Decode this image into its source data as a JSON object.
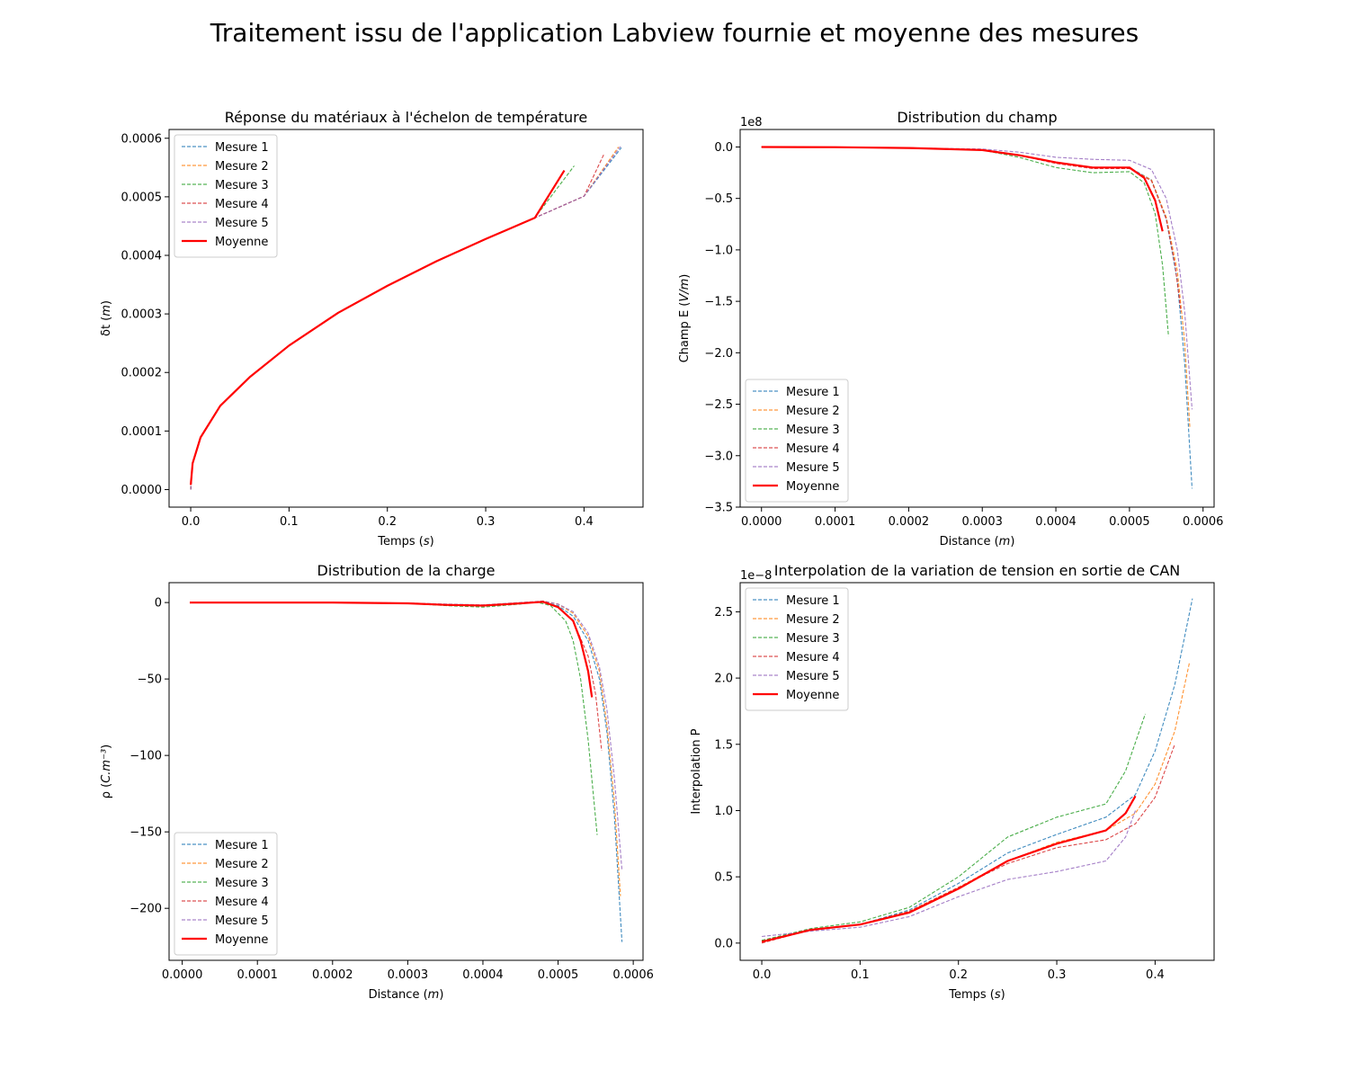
{
  "figure": {
    "title": "Traitement issu de l'application Labview fournie et moyenne des mesures"
  },
  "colors": {
    "Mesure 1": "#1f77b4",
    "Mesure 2": "#ff7f0e",
    "Mesure 3": "#2ca02c",
    "Mesure 4": "#d62728",
    "Mesure 5": "#9467bd",
    "Moyenne": "#ff0000"
  },
  "chart_data": [
    {
      "id": "c1",
      "type": "line",
      "title": "Réponse du matériaux à l'échelon de température",
      "xlabel": "Temps (s)",
      "ylabel": "δt (m)",
      "xlim": [
        -0.022,
        0.46
      ],
      "ylim": [
        -3e-05,
        0.000615
      ],
      "xticks": [
        0.0,
        0.1,
        0.2,
        0.3,
        0.4
      ],
      "xtick_labels": [
        "0.0",
        "0.1",
        "0.2",
        "0.3",
        "0.4"
      ],
      "yticks": [
        0.0,
        0.0001,
        0.0002,
        0.0003,
        0.0004,
        0.0005,
        0.0006
      ],
      "ytick_labels": [
        "0.0000",
        "0.0001",
        "0.0002",
        "0.0003",
        "0.0004",
        "0.0005",
        "0.0006"
      ],
      "exponent": "",
      "legend": "upper-left",
      "series": [
        {
          "name": "Mesure 1",
          "style": "dashed",
          "x": [
            0.0,
            0.002,
            0.01,
            0.03,
            0.06,
            0.1,
            0.15,
            0.2,
            0.25,
            0.3,
            0.35,
            0.4,
            0.438
          ],
          "y": [
            0.0,
            4.5e-05,
            8.9e-05,
            0.000143,
            0.000192,
            0.000246,
            0.000302,
            0.000348,
            0.00039,
            0.000428,
            0.000464,
            0.000501,
            0.000584
          ]
        },
        {
          "name": "Mesure 2",
          "style": "dashed",
          "x": [
            0.0,
            0.002,
            0.01,
            0.03,
            0.06,
            0.1,
            0.15,
            0.2,
            0.25,
            0.3,
            0.35,
            0.4,
            0.435
          ],
          "y": [
            0.0,
            4.5e-05,
            8.9e-05,
            0.000143,
            0.000192,
            0.000246,
            0.000302,
            0.000348,
            0.00039,
            0.000428,
            0.000464,
            0.000501,
            0.000585
          ]
        },
        {
          "name": "Mesure 3",
          "style": "dashed",
          "x": [
            0.0,
            0.002,
            0.01,
            0.03,
            0.06,
            0.1,
            0.15,
            0.2,
            0.25,
            0.3,
            0.35,
            0.39
          ],
          "y": [
            0.0,
            4.5e-05,
            8.9e-05,
            0.000143,
            0.000192,
            0.000246,
            0.000302,
            0.000348,
            0.00039,
            0.000428,
            0.000464,
            0.000553
          ]
        },
        {
          "name": "Mesure 4",
          "style": "dashed",
          "x": [
            0.0,
            0.002,
            0.01,
            0.03,
            0.06,
            0.1,
            0.15,
            0.2,
            0.25,
            0.3,
            0.35,
            0.4,
            0.42
          ],
          "y": [
            0.0,
            4.5e-05,
            8.9e-05,
            0.000143,
            0.000192,
            0.000246,
            0.000302,
            0.000348,
            0.00039,
            0.000428,
            0.000464,
            0.000501,
            0.000572
          ]
        },
        {
          "name": "Mesure 5",
          "style": "dashed",
          "x": [
            0.0,
            0.002,
            0.01,
            0.03,
            0.06,
            0.1,
            0.15,
            0.2,
            0.25,
            0.3,
            0.35,
            0.4,
            0.437
          ],
          "y": [
            0.0,
            4.5e-05,
            8.9e-05,
            0.000143,
            0.000192,
            0.000246,
            0.000302,
            0.000348,
            0.00039,
            0.000428,
            0.000464,
            0.000501,
            0.000586
          ]
        },
        {
          "name": "Moyenne",
          "style": "solid",
          "x": [
            0.0,
            0.002,
            0.01,
            0.03,
            0.06,
            0.1,
            0.15,
            0.2,
            0.25,
            0.3,
            0.35,
            0.38
          ],
          "y": [
            8e-06,
            4.5e-05,
            8.9e-05,
            0.000143,
            0.000192,
            0.000246,
            0.000302,
            0.000348,
            0.00039,
            0.000428,
            0.000464,
            0.000545
          ]
        }
      ]
    },
    {
      "id": "c2",
      "type": "line",
      "title": "Distribution du champ",
      "xlabel": "Distance (m)",
      "ylabel": "Champ E (V/m)",
      "xlim": [
        -2.9e-05,
        0.000615
      ],
      "ylim": [
        -3.5,
        0.17
      ],
      "xticks": [
        0.0,
        0.0001,
        0.0002,
        0.0003,
        0.0004,
        0.0005,
        0.0006
      ],
      "xtick_labels": [
        "0.0000",
        "0.0001",
        "0.0002",
        "0.0003",
        "0.0004",
        "0.0005",
        "0.0006"
      ],
      "yticks": [
        0.0,
        -0.5,
        -1.0,
        -1.5,
        -2.0,
        -2.5,
        -3.0,
        -3.5
      ],
      "ytick_labels": [
        "0.0",
        "−0.5",
        "−1.0",
        "−1.5",
        "−2.0",
        "−2.5",
        "−3.0",
        "−3.5"
      ],
      "exponent": "1e8",
      "legend": "lower-left",
      "series": [
        {
          "name": "Mesure 1",
          "style": "dashed",
          "x": [
            0.0,
            0.0001,
            0.0002,
            0.0003,
            0.00035,
            0.0004,
            0.00045,
            0.0005,
            0.00053,
            0.00055,
            0.000565,
            0.000575,
            0.000585
          ],
          "y": [
            0.0,
            -0.002,
            -0.01,
            -0.03,
            -0.08,
            -0.15,
            -0.2,
            -0.2,
            -0.32,
            -0.7,
            -1.3,
            -2.1,
            -3.32
          ]
        },
        {
          "name": "Mesure 2",
          "style": "dashed",
          "x": [
            0.0,
            0.0001,
            0.0002,
            0.0003,
            0.00035,
            0.0004,
            0.00045,
            0.0005,
            0.00053,
            0.00055,
            0.000565,
            0.000575,
            0.000582
          ],
          "y": [
            0.0,
            -0.002,
            -0.01,
            -0.03,
            -0.08,
            -0.15,
            -0.2,
            -0.21,
            -0.32,
            -0.68,
            -1.2,
            -1.9,
            -2.72
          ]
        },
        {
          "name": "Mesure 3",
          "style": "dashed",
          "x": [
            0.0,
            0.0001,
            0.0002,
            0.0003,
            0.00035,
            0.0004,
            0.00045,
            0.0005,
            0.00052,
            0.000535,
            0.000545,
            0.000553
          ],
          "y": [
            0.0,
            -0.002,
            -0.01,
            -0.03,
            -0.1,
            -0.2,
            -0.25,
            -0.24,
            -0.35,
            -0.65,
            -1.15,
            -1.84
          ]
        },
        {
          "name": "Mesure 4",
          "style": "dashed",
          "x": [
            0.0,
            0.0001,
            0.0002,
            0.0003,
            0.00035,
            0.0004,
            0.00045,
            0.0005,
            0.00053,
            0.00055,
            0.000562,
            0.00057
          ],
          "y": [
            0.0,
            -0.002,
            -0.01,
            -0.03,
            -0.08,
            -0.16,
            -0.21,
            -0.21,
            -0.33,
            -0.7,
            -1.15,
            -1.6
          ]
        },
        {
          "name": "Mesure 5",
          "style": "dashed",
          "x": [
            0.0,
            0.0001,
            0.0002,
            0.0003,
            0.00035,
            0.0004,
            0.00045,
            0.0005,
            0.00053,
            0.00055,
            0.000565,
            0.000575,
            0.000585
          ],
          "y": [
            0.0,
            -0.002,
            -0.01,
            -0.02,
            -0.05,
            -0.1,
            -0.12,
            -0.13,
            -0.22,
            -0.5,
            -1.0,
            -1.6,
            -2.55
          ]
        },
        {
          "name": "Moyenne",
          "style": "solid",
          "x": [
            0.0,
            0.0001,
            0.0002,
            0.0003,
            0.00035,
            0.0004,
            0.00045,
            0.0005,
            0.00052,
            0.000535,
            0.000545
          ],
          "y": [
            0.0,
            -0.002,
            -0.01,
            -0.03,
            -0.08,
            -0.15,
            -0.2,
            -0.2,
            -0.3,
            -0.52,
            -0.82
          ]
        }
      ]
    },
    {
      "id": "c3",
      "type": "line",
      "title": "Distribution de la charge",
      "xlabel": "Distance (m)",
      "ylabel": "ρ (C.m⁻³)",
      "xlim": [
        -1.75e-05,
        0.000613
      ],
      "ylim": [
        -234,
        13
      ],
      "xticks": [
        0.0,
        0.0001,
        0.0002,
        0.0003,
        0.0004,
        0.0005,
        0.0006
      ],
      "xtick_labels": [
        "0.0000",
        "0.0001",
        "0.0002",
        "0.0003",
        "0.0004",
        "0.0005",
        "0.0006"
      ],
      "yticks": [
        0,
        -50,
        -100,
        -150,
        -200
      ],
      "ytick_labels": [
        "0",
        "−50",
        "−100",
        "−150",
        "−200"
      ],
      "exponent": "",
      "legend": "lower-left",
      "series": [
        {
          "name": "Mesure 1",
          "style": "dashed",
          "x": [
            1e-05,
            0.0001,
            0.0002,
            0.0003,
            0.00035,
            0.0004,
            0.00045,
            0.00048,
            0.0005,
            0.00052,
            0.00054,
            0.000555,
            0.000565,
            0.000575,
            0.000585
          ],
          "y": [
            0,
            0,
            0,
            -0.5,
            -1.5,
            -2,
            -0.5,
            0.5,
            -2,
            -9,
            -25,
            -50,
            -85,
            -140,
            -222
          ]
        },
        {
          "name": "Mesure 2",
          "style": "dashed",
          "x": [
            1e-05,
            0.0001,
            0.0002,
            0.0003,
            0.00035,
            0.0004,
            0.00045,
            0.00048,
            0.0005,
            0.00052,
            0.00054,
            0.000555,
            0.000565,
            0.000575,
            0.000583
          ],
          "y": [
            0,
            0,
            0,
            -0.5,
            -1.5,
            -2,
            -0.5,
            1,
            -1,
            -7,
            -22,
            -45,
            -80,
            -130,
            -192
          ]
        },
        {
          "name": "Mesure 3",
          "style": "dashed",
          "x": [
            1e-05,
            0.0001,
            0.0002,
            0.0003,
            0.00035,
            0.0004,
            0.00045,
            0.00047,
            0.00049,
            0.00051,
            0.00052,
            0.00053,
            0.00054,
            0.000552
          ],
          "y": [
            0,
            0,
            0,
            -0.5,
            -2,
            -3,
            -1,
            0.5,
            -2,
            -12,
            -25,
            -50,
            -90,
            -152
          ]
        },
        {
          "name": "Mesure 4",
          "style": "dashed",
          "x": [
            1e-05,
            0.0001,
            0.0002,
            0.0003,
            0.00035,
            0.0004,
            0.00045,
            0.00048,
            0.0005,
            0.00052,
            0.00054,
            0.00055,
            0.000558
          ],
          "y": [
            0,
            0,
            0,
            -0.5,
            -1.5,
            -2,
            -0.5,
            0.5,
            -3,
            -12,
            -35,
            -60,
            -97
          ]
        },
        {
          "name": "Mesure 5",
          "style": "dashed",
          "x": [
            1e-05,
            0.0001,
            0.0002,
            0.0003,
            0.00035,
            0.0004,
            0.00045,
            0.00048,
            0.0005,
            0.00052,
            0.00054,
            0.000555,
            0.000565,
            0.000575,
            0.000585
          ],
          "y": [
            0,
            0,
            0,
            -0.3,
            -1,
            -1.5,
            0,
            1,
            -1,
            -6,
            -20,
            -42,
            -70,
            -115,
            -175
          ]
        },
        {
          "name": "Moyenne",
          "style": "solid",
          "x": [
            1e-05,
            0.0001,
            0.0002,
            0.0003,
            0.00035,
            0.0004,
            0.00045,
            0.00048,
            0.0005,
            0.00052,
            0.00053,
            0.00054,
            0.000545
          ],
          "y": [
            0,
            0,
            0,
            -0.5,
            -1.5,
            -2,
            -0.5,
            0.5,
            -3,
            -12,
            -25,
            -45,
            -62
          ]
        }
      ]
    },
    {
      "id": "c4",
      "type": "line",
      "title": "Interpolation de la variation de tension en sortie de CAN",
      "xlabel": "Temps (s)",
      "ylabel": "Interpolation P",
      "xlim": [
        -0.022,
        0.46
      ],
      "ylim": [
        -0.13,
        2.72
      ],
      "xticks": [
        0.0,
        0.1,
        0.2,
        0.3,
        0.4
      ],
      "xtick_labels": [
        "0.0",
        "0.1",
        "0.2",
        "0.3",
        "0.4"
      ],
      "yticks": [
        0.0,
        0.5,
        1.0,
        1.5,
        2.0,
        2.5
      ],
      "ytick_labels": [
        "0.0",
        "0.5",
        "1.0",
        "1.5",
        "2.0",
        "2.5"
      ],
      "exponent": "1e−8",
      "legend": "upper-left",
      "series": [
        {
          "name": "Mesure 1",
          "style": "dashed",
          "x": [
            0.0,
            0.05,
            0.1,
            0.15,
            0.2,
            0.25,
            0.3,
            0.35,
            0.38,
            0.4,
            0.42,
            0.438
          ],
          "y": [
            0.02,
            0.1,
            0.14,
            0.25,
            0.45,
            0.68,
            0.82,
            0.95,
            1.12,
            1.45,
            1.95,
            2.6
          ]
        },
        {
          "name": "Mesure 2",
          "style": "dashed",
          "x": [
            0.0,
            0.05,
            0.1,
            0.15,
            0.2,
            0.25,
            0.3,
            0.35,
            0.38,
            0.4,
            0.42,
            0.435
          ],
          "y": [
            0.02,
            0.1,
            0.14,
            0.24,
            0.42,
            0.62,
            0.76,
            0.85,
            0.98,
            1.2,
            1.6,
            2.12
          ]
        },
        {
          "name": "Mesure 3",
          "style": "dashed",
          "x": [
            0.0,
            0.05,
            0.1,
            0.15,
            0.2,
            0.25,
            0.3,
            0.35,
            0.37,
            0.39
          ],
          "y": [
            0.02,
            0.11,
            0.16,
            0.27,
            0.5,
            0.8,
            0.95,
            1.05,
            1.3,
            1.73
          ]
        },
        {
          "name": "Mesure 4",
          "style": "dashed",
          "x": [
            0.0,
            0.05,
            0.1,
            0.15,
            0.2,
            0.25,
            0.3,
            0.35,
            0.38,
            0.4,
            0.42
          ],
          "y": [
            0.0,
            0.1,
            0.14,
            0.24,
            0.42,
            0.6,
            0.72,
            0.78,
            0.9,
            1.1,
            1.5
          ]
        },
        {
          "name": "Mesure 5",
          "style": "dashed",
          "x": [
            0.0,
            0.05,
            0.1,
            0.15,
            0.2,
            0.25,
            0.3,
            0.35,
            0.37,
            0.38
          ],
          "y": [
            0.05,
            0.09,
            0.12,
            0.2,
            0.35,
            0.48,
            0.54,
            0.62,
            0.8,
            1.0
          ]
        },
        {
          "name": "Moyenne",
          "style": "solid",
          "x": [
            0.0,
            0.05,
            0.1,
            0.15,
            0.2,
            0.25,
            0.3,
            0.35,
            0.37,
            0.38
          ],
          "y": [
            0.01,
            0.1,
            0.14,
            0.23,
            0.41,
            0.62,
            0.75,
            0.85,
            0.98,
            1.11
          ]
        }
      ]
    }
  ]
}
